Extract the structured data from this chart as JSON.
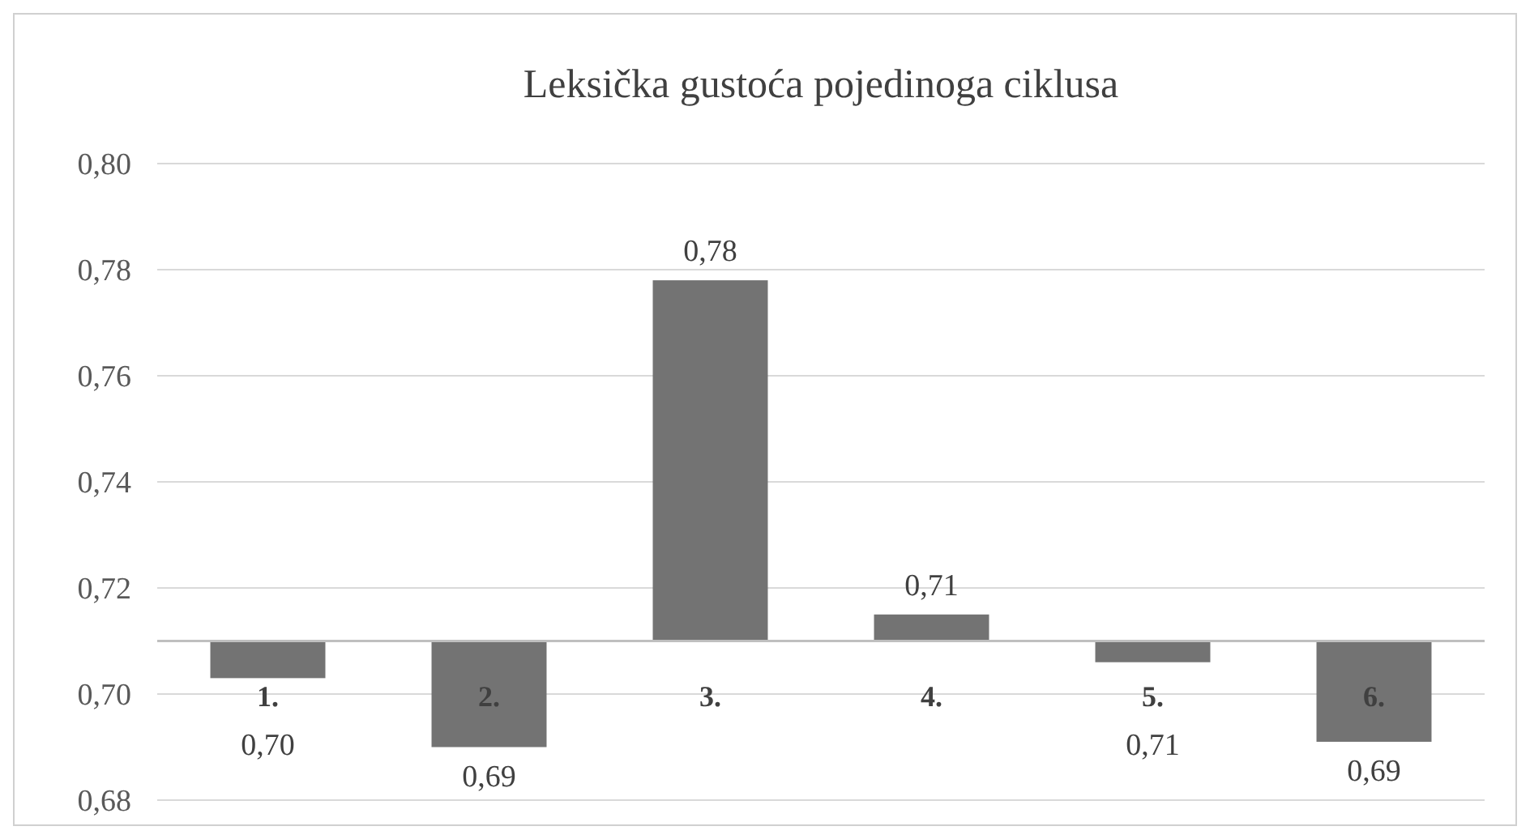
{
  "chart_data": {
    "type": "bar",
    "title": "Leksička gustoća pojedinoga ciklusa",
    "categories": [
      "1.",
      "2.",
      "3.",
      "4.",
      "5.",
      "6."
    ],
    "base": [
      0.71,
      0.71,
      0.71,
      0.71,
      0.71,
      0.71
    ],
    "values": [
      -0.007,
      -0.02,
      0.068,
      0.005,
      -0.004,
      -0.019
    ],
    "value_labels": [
      "0,70",
      "0,69",
      "0,78",
      "0,71",
      "0,71",
      "0,69"
    ],
    "color": "#737373",
    "ylim": [
      0.68,
      0.8
    ],
    "yticks": [
      {
        "value": 0.68,
        "label": "0,68"
      },
      {
        "value": 0.7,
        "label": "0,70"
      },
      {
        "value": 0.72,
        "label": "0,72"
      },
      {
        "value": 0.74,
        "label": "0,74"
      },
      {
        "value": 0.76,
        "label": "0,76"
      },
      {
        "value": 0.78,
        "label": "0,78"
      },
      {
        "value": 0.8,
        "label": "0,80"
      }
    ],
    "grid": "y"
  }
}
